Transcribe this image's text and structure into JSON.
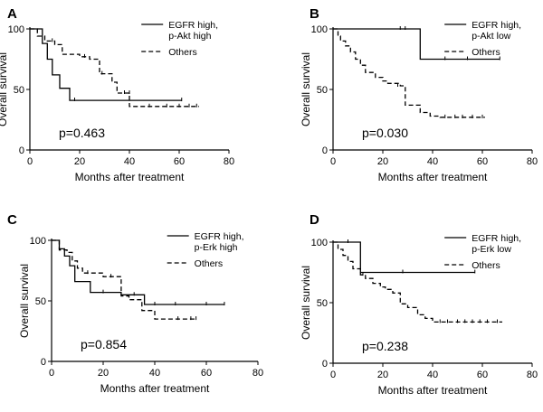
{
  "chart_data": [
    {
      "type": "line",
      "panel": "A",
      "xlabel": "Months after treatment",
      "ylabel": "Overall survival",
      "xlim": [
        0,
        80
      ],
      "ylim": [
        0,
        100
      ],
      "xticks": [
        0,
        20,
        40,
        60,
        80
      ],
      "yticks": [
        0,
        50,
        100
      ],
      "pvalue": "p=0.463",
      "series": [
        {
          "name": "EGFR high, p-Akt high",
          "legend_lines": [
            "EGFR high,",
            "p-Akt  high"
          ],
          "style": "solid",
          "x": [
            0,
            5,
            5,
            7,
            7,
            9,
            9,
            12,
            12,
            16,
            16,
            61
          ],
          "y": [
            100,
            100,
            88,
            88,
            75,
            75,
            62,
            62,
            51,
            51,
            41,
            41
          ],
          "censored": [
            [
              18,
              41
            ],
            [
              61,
              41
            ]
          ]
        },
        {
          "name": "Others",
          "legend_lines": [
            "Others"
          ],
          "style": "dashed",
          "x": [
            0,
            3,
            3,
            6,
            6,
            10,
            10,
            13,
            13,
            20,
            20,
            24,
            24,
            28,
            28,
            33,
            33,
            35,
            35,
            40,
            40,
            68
          ],
          "y": [
            100,
            100,
            94,
            94,
            90,
            90,
            87,
            87,
            79,
            79,
            77,
            77,
            75,
            75,
            63,
            63,
            56,
            56,
            47,
            47,
            36,
            36
          ],
          "censored": [
            [
              9,
              90
            ],
            [
              22,
              77
            ],
            [
              29,
              63
            ],
            [
              38,
              47
            ],
            [
              40,
              47
            ],
            [
              48,
              36
            ],
            [
              55,
              36
            ],
            [
              60,
              36
            ],
            [
              64,
              36
            ],
            [
              67,
              36
            ]
          ]
        }
      ]
    },
    {
      "type": "line",
      "panel": "B",
      "xlabel": "Months after treatment",
      "ylabel": "Overall survival",
      "xlim": [
        0,
        80
      ],
      "ylim": [
        0,
        100
      ],
      "xticks": [
        0,
        20,
        40,
        60,
        80
      ],
      "yticks": [
        0,
        50,
        100
      ],
      "pvalue": "p=0.030",
      "series": [
        {
          "name": "EGFR high, p-Akt low",
          "legend_lines": [
            "EGFR high,",
            "p-Akt   low"
          ],
          "style": "solid",
          "x": [
            0,
            35,
            35,
            67
          ],
          "y": [
            100,
            100,
            75,
            75
          ],
          "censored": [
            [
              27,
              100
            ],
            [
              29,
              100
            ],
            [
              45,
              75
            ],
            [
              54,
              75
            ],
            [
              67,
              75
            ]
          ]
        },
        {
          "name": "Others",
          "legend_lines": [
            "Others"
          ],
          "style": "dashed",
          "x": [
            0,
            2,
            2,
            3,
            3,
            5,
            5,
            7,
            7,
            9,
            9,
            11,
            11,
            13,
            13,
            17,
            17,
            20,
            20,
            22,
            22,
            27,
            27,
            29,
            29,
            35,
            35,
            39,
            39,
            43,
            43,
            61
          ],
          "y": [
            100,
            100,
            94,
            94,
            90,
            90,
            86,
            86,
            81,
            81,
            75,
            75,
            70,
            70,
            64,
            64,
            60,
            60,
            57,
            57,
            55,
            55,
            53,
            53,
            37,
            37,
            31,
            31,
            28,
            28,
            27,
            27
          ],
          "censored": [
            [
              26,
              53
            ],
            [
              45,
              27
            ],
            [
              49,
              27
            ],
            [
              52,
              27
            ],
            [
              56,
              27
            ],
            [
              60,
              27
            ]
          ]
        }
      ]
    },
    {
      "type": "line",
      "panel": "C",
      "xlabel": "Months after treatment",
      "ylabel": "Overall survival",
      "xlim": [
        0,
        80
      ],
      "ylim": [
        0,
        100
      ],
      "xticks": [
        0,
        20,
        40,
        60,
        80
      ],
      "yticks": [
        0,
        50,
        100
      ],
      "pvalue": "p=0.854",
      "series": [
        {
          "name": "EGFR high, p-Erk high",
          "legend_lines": [
            "EGFR high,",
            "p-Erk   high"
          ],
          "style": "solid",
          "x": [
            0,
            3,
            3,
            5,
            5,
            7,
            7,
            9,
            9,
            15,
            15,
            27,
            27,
            36,
            36,
            67
          ],
          "y": [
            100,
            100,
            93,
            93,
            87,
            87,
            79,
            79,
            66,
            66,
            57,
            57,
            55,
            55,
            47,
            47
          ],
          "censored": [
            [
              20,
              57
            ],
            [
              32,
              55
            ],
            [
              40,
              47
            ],
            [
              48,
              47
            ],
            [
              60,
              47
            ],
            [
              67,
              47
            ]
          ]
        },
        {
          "name": "Others",
          "legend_lines": [
            "Others"
          ],
          "style": "dashed",
          "x": [
            0,
            3,
            3,
            6,
            6,
            8,
            8,
            10,
            10,
            12,
            12,
            20,
            20,
            27,
            27,
            30,
            30,
            35,
            35,
            40,
            40,
            56
          ],
          "y": [
            100,
            100,
            92,
            92,
            90,
            90,
            83,
            83,
            77,
            77,
            73,
            73,
            70,
            70,
            54,
            54,
            51,
            51,
            42,
            42,
            35,
            35
          ],
          "censored": [
            [
              14,
              73
            ],
            [
              23,
              70
            ],
            [
              49,
              35
            ],
            [
              54,
              35
            ],
            [
              56,
              35
            ]
          ]
        }
      ]
    },
    {
      "type": "line",
      "panel": "D",
      "xlabel": "Months after treatment",
      "ylabel": "Overall survival",
      "xlim": [
        0,
        80
      ],
      "ylim": [
        0,
        100
      ],
      "xticks": [
        0,
        20,
        40,
        60,
        80
      ],
      "yticks": [
        0,
        50,
        100
      ],
      "pvalue": "p=0.238",
      "series": [
        {
          "name": "EGFR high, p-Erk low",
          "legend_lines": [
            "EGFR high,",
            "p-Erk   low"
          ],
          "style": "solid",
          "x": [
            0,
            11,
            11,
            57
          ],
          "y": [
            100,
            100,
            75,
            75
          ],
          "censored": [
            [
              6,
              100
            ],
            [
              28,
              75
            ],
            [
              57,
              75
            ]
          ]
        },
        {
          "name": "Others",
          "legend_lines": [
            "Others"
          ],
          "style": "dashed",
          "x": [
            0,
            2,
            2,
            4,
            4,
            6,
            6,
            8,
            8,
            11,
            11,
            13,
            13,
            16,
            16,
            19,
            19,
            21,
            21,
            24,
            24,
            27,
            27,
            30,
            30,
            34,
            34,
            37,
            37,
            40,
            40,
            68
          ],
          "y": [
            100,
            100,
            94,
            94,
            89,
            89,
            84,
            84,
            78,
            78,
            73,
            73,
            70,
            70,
            66,
            66,
            63,
            63,
            61,
            61,
            58,
            58,
            49,
            49,
            46,
            46,
            40,
            40,
            37,
            37,
            34,
            34
          ],
          "censored": [
            [
              12,
              73
            ],
            [
              43,
              34
            ],
            [
              46,
              34
            ],
            [
              50,
              34
            ],
            [
              53,
              34
            ],
            [
              56,
              34
            ],
            [
              59,
              34
            ],
            [
              62,
              34
            ],
            [
              66,
              34
            ]
          ]
        }
      ]
    }
  ]
}
